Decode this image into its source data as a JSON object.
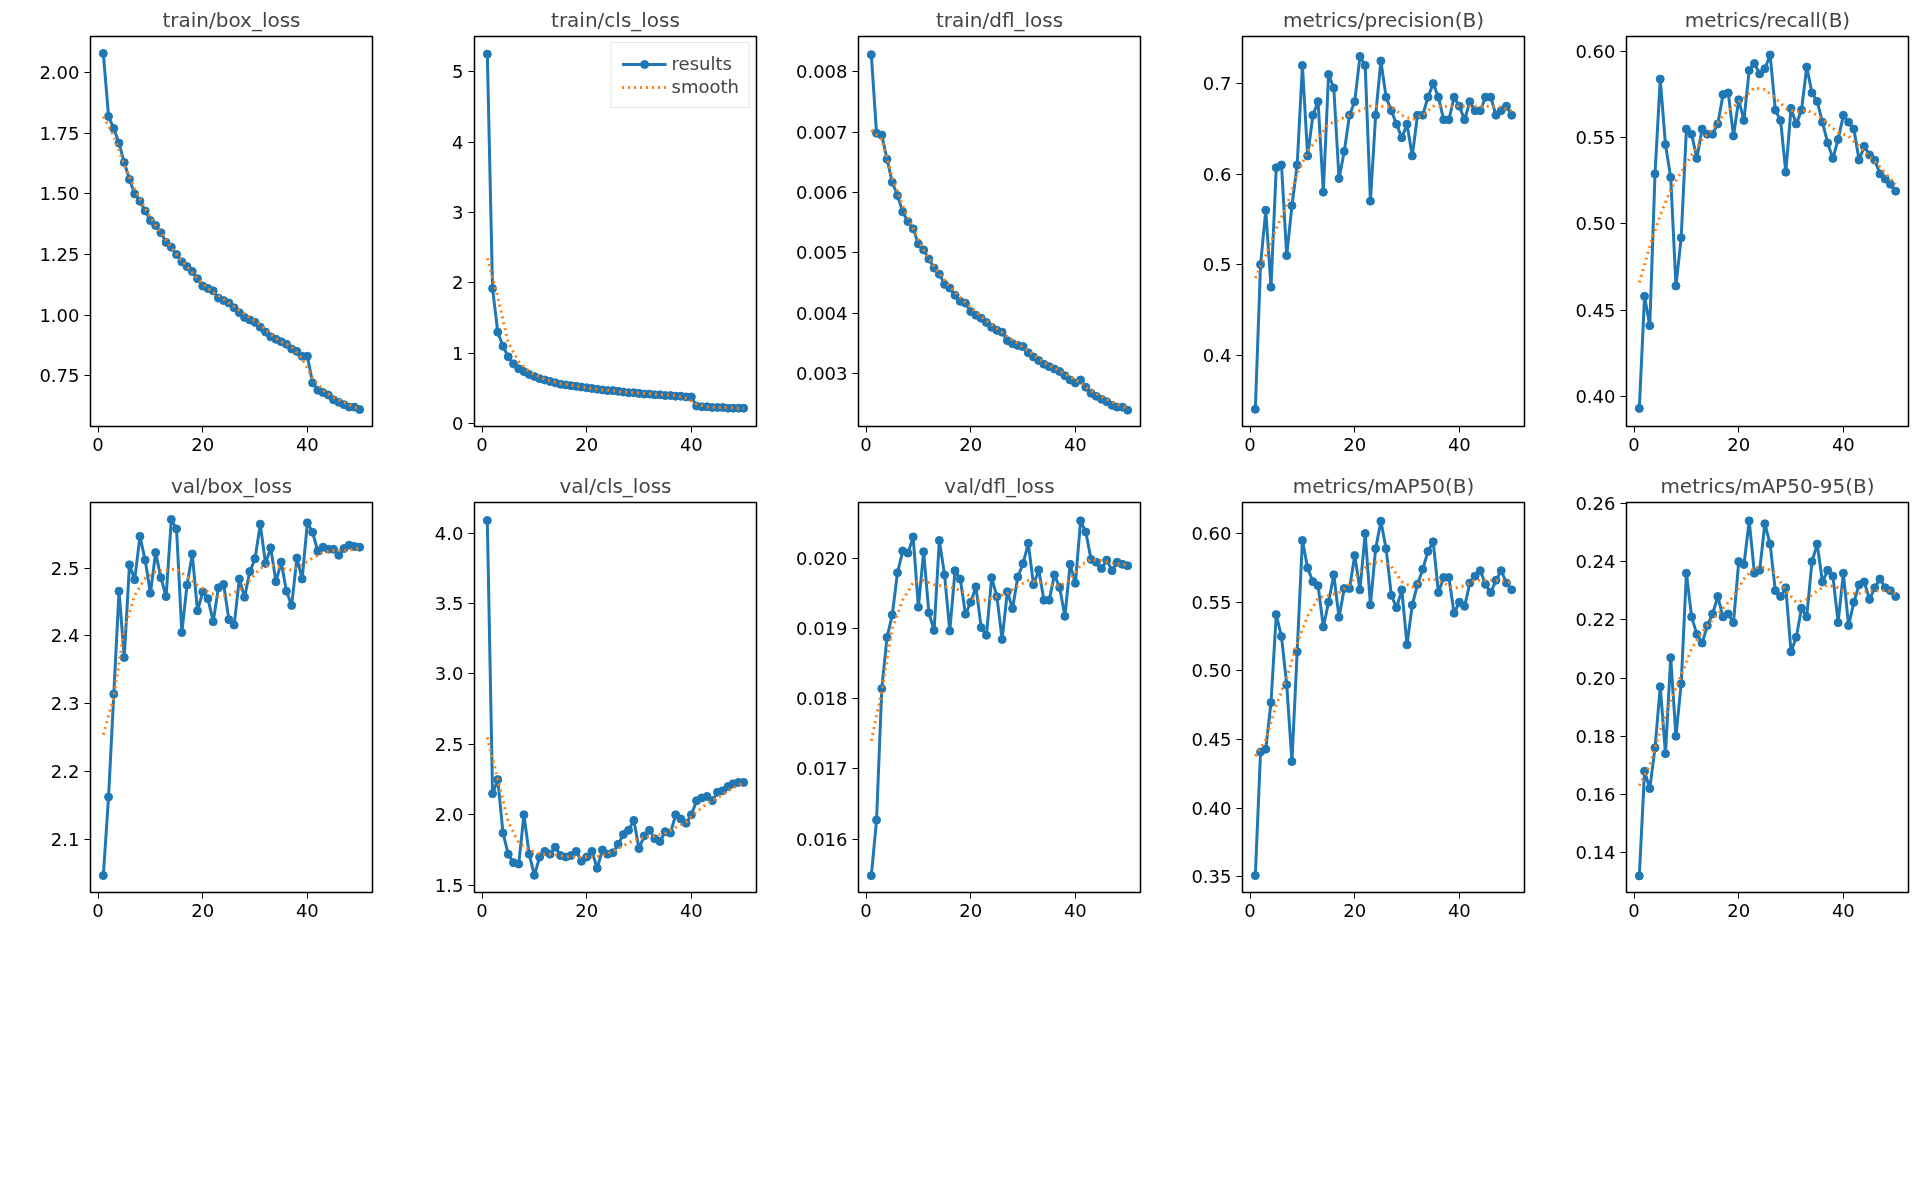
{
  "chart_data": [
    {
      "type": "line",
      "title": "train/box_loss",
      "xlim": [
        -1.45,
        52.45
      ],
      "xticks": [
        0,
        20,
        40
      ],
      "ylim": [
        0.54,
        2.15
      ],
      "yticks": [
        {
          "value": 0.75,
          "label": "0.75"
        },
        {
          "value": 1.0,
          "label": "1.00"
        },
        {
          "value": 1.25,
          "label": "1.25"
        },
        {
          "value": 1.5,
          "label": "1.50"
        },
        {
          "value": 1.75,
          "label": "1.75"
        },
        {
          "value": 2.0,
          "label": "2.00"
        }
      ],
      "x": [
        1,
        2,
        3,
        4,
        5,
        6,
        7,
        8,
        9,
        10,
        11,
        12,
        13,
        14,
        15,
        16,
        17,
        18,
        19,
        20,
        21,
        22,
        23,
        24,
        25,
        26,
        27,
        28,
        29,
        30,
        31,
        32,
        33,
        34,
        35,
        36,
        37,
        38,
        39,
        40,
        41,
        42,
        43,
        44,
        45,
        46,
        47,
        48,
        49,
        50
      ],
      "series": [
        {
          "color": "#1f77b4",
          "marker": "circle",
          "line_style": "solid",
          "values": [
            2.08,
            1.82,
            1.77,
            1.71,
            1.63,
            1.56,
            1.5,
            1.47,
            1.43,
            1.39,
            1.37,
            1.34,
            1.3,
            1.28,
            1.25,
            1.22,
            1.2,
            1.18,
            1.15,
            1.12,
            1.11,
            1.1,
            1.07,
            1.06,
            1.05,
            1.03,
            1.01,
            0.99,
            0.98,
            0.97,
            0.95,
            0.93,
            0.91,
            0.9,
            0.89,
            0.88,
            0.86,
            0.85,
            0.83,
            0.83,
            0.72,
            0.69,
            0.68,
            0.67,
            0.65,
            0.64,
            0.63,
            0.62,
            0.62,
            0.61
          ]
        },
        {
          "color": "#ff7f0e",
          "marker": "none",
          "line_style": "dotted",
          "x": [
            1,
            3,
            5,
            7,
            9,
            11,
            13,
            15,
            17,
            19,
            21,
            23,
            25,
            27,
            29,
            31,
            33,
            35,
            37,
            39,
            41,
            43,
            45,
            47,
            49,
            50
          ],
          "values": [
            1.82,
            1.74,
            1.62,
            1.52,
            1.44,
            1.37,
            1.31,
            1.25,
            1.2,
            1.15,
            1.11,
            1.08,
            1.05,
            1.02,
            0.99,
            0.96,
            0.92,
            0.89,
            0.87,
            0.82,
            0.74,
            0.69,
            0.66,
            0.64,
            0.62,
            0.61
          ]
        }
      ]
    },
    {
      "type": "line",
      "title": "train/cls_loss",
      "legend": "top right",
      "xlim": [
        -1.45,
        52.45
      ],
      "xticks": [
        0,
        20,
        40
      ],
      "ylim": [
        -0.04,
        5.5
      ],
      "yticks": [
        0,
        1,
        2,
        3,
        4,
        5
      ],
      "x": [
        1,
        2,
        3,
        4,
        5,
        6,
        7,
        8,
        9,
        10,
        11,
        12,
        13,
        14,
        15,
        16,
        17,
        18,
        19,
        20,
        21,
        22,
        23,
        24,
        25,
        26,
        27,
        28,
        29,
        30,
        31,
        32,
        33,
        34,
        35,
        36,
        37,
        38,
        39,
        40,
        41,
        42,
        43,
        44,
        45,
        46,
        47,
        48,
        49,
        50
      ],
      "series": [
        {
          "name": "results",
          "color": "#1f77b4",
          "marker": "circle",
          "line_style": "solid",
          "values": [
            5.25,
            1.92,
            1.3,
            1.1,
            0.95,
            0.85,
            0.78,
            0.74,
            0.7,
            0.67,
            0.64,
            0.62,
            0.6,
            0.58,
            0.56,
            0.55,
            0.54,
            0.53,
            0.52,
            0.51,
            0.5,
            0.49,
            0.48,
            0.47,
            0.47,
            0.46,
            0.45,
            0.44,
            0.44,
            0.43,
            0.42,
            0.42,
            0.41,
            0.41,
            0.4,
            0.4,
            0.39,
            0.39,
            0.38,
            0.38,
            0.25,
            0.24,
            0.24,
            0.23,
            0.23,
            0.23,
            0.22,
            0.22,
            0.22,
            0.22
          ]
        },
        {
          "name": "smooth",
          "color": "#ff7f0e",
          "marker": "none",
          "line_style": "dotted",
          "x": [
            1,
            3,
            5,
            7,
            9,
            11,
            13,
            15,
            17,
            19,
            21,
            23,
            25,
            27,
            29,
            31,
            33,
            35,
            37,
            39,
            41,
            43,
            45,
            47,
            49,
            50
          ],
          "values": [
            2.35,
            1.8,
            1.15,
            0.88,
            0.74,
            0.66,
            0.61,
            0.57,
            0.55,
            0.52,
            0.5,
            0.48,
            0.47,
            0.45,
            0.44,
            0.43,
            0.42,
            0.41,
            0.4,
            0.36,
            0.28,
            0.24,
            0.23,
            0.23,
            0.22,
            0.22
          ]
        }
      ]
    },
    {
      "type": "line",
      "title": "train/dfl_loss",
      "xlim": [
        -1.45,
        52.45
      ],
      "xticks": [
        0,
        20,
        40
      ],
      "ylim": [
        0.00213,
        0.00858
      ],
      "yticks": [
        0.003,
        0.004,
        0.005,
        0.006,
        0.007,
        0.008
      ],
      "x": [
        1,
        2,
        3,
        4,
        5,
        6,
        7,
        8,
        9,
        10,
        11,
        12,
        13,
        14,
        15,
        16,
        17,
        18,
        19,
        20,
        21,
        22,
        23,
        24,
        25,
        26,
        27,
        28,
        29,
        30,
        31,
        32,
        33,
        34,
        35,
        36,
        37,
        38,
        39,
        40,
        41,
        42,
        43,
        44,
        45,
        46,
        47,
        48,
        49,
        50
      ],
      "series": [
        {
          "color": "#1f77b4",
          "marker": "circle",
          "line_style": "solid",
          "values": [
            0.00828,
            0.00698,
            0.00695,
            0.00655,
            0.00617,
            0.00595,
            0.00568,
            0.00552,
            0.0054,
            0.00515,
            0.00505,
            0.0049,
            0.00475,
            0.00465,
            0.00448,
            0.00442,
            0.0043,
            0.0042,
            0.00417,
            0.00403,
            0.00397,
            0.00392,
            0.00385,
            0.00377,
            0.00372,
            0.00369,
            0.00355,
            0.0035,
            0.00347,
            0.00345,
            0.00335,
            0.00328,
            0.00322,
            0.00316,
            0.00312,
            0.00308,
            0.00304,
            0.00297,
            0.0029,
            0.00285,
            0.0029,
            0.00278,
            0.00268,
            0.00263,
            0.00258,
            0.00254,
            0.00248,
            0.00245,
            0.00245,
            0.0024
          ]
        },
        {
          "color": "#ff7f0e",
          "marker": "none",
          "line_style": "dotted",
          "x": [
            1,
            3,
            5,
            7,
            9,
            11,
            13,
            15,
            17,
            19,
            21,
            23,
            25,
            27,
            29,
            31,
            33,
            35,
            37,
            39,
            41,
            43,
            45,
            47,
            49,
            50
          ],
          "values": [
            0.00703,
            0.00688,
            0.00625,
            0.00578,
            0.0054,
            0.00505,
            0.00478,
            0.00455,
            0.00435,
            0.00418,
            0.00402,
            0.00388,
            0.00375,
            0.00362,
            0.0035,
            0.00338,
            0.00325,
            0.00314,
            0.00305,
            0.00295,
            0.00285,
            0.00272,
            0.00262,
            0.00254,
            0.00246,
            0.00243
          ]
        }
      ]
    },
    {
      "type": "line",
      "title": "metrics/precision(B)",
      "xlim": [
        -1.45,
        52.45
      ],
      "xticks": [
        0,
        20,
        40
      ],
      "ylim": [
        0.321,
        0.752
      ],
      "yticks": [
        0.4,
        0.5,
        0.6,
        0.7
      ],
      "x": [
        1,
        2,
        3,
        4,
        5,
        6,
        7,
        8,
        9,
        10,
        11,
        12,
        13,
        14,
        15,
        16,
        17,
        18,
        19,
        20,
        21,
        22,
        23,
        24,
        25,
        26,
        27,
        28,
        29,
        30,
        31,
        32,
        33,
        34,
        35,
        36,
        37,
        38,
        39,
        40,
        41,
        42,
        43,
        44,
        45,
        46,
        47,
        48,
        49,
        50
      ],
      "series": [
        {
          "color": "#1f77b4",
          "marker": "circle",
          "line_style": "solid",
          "values": [
            0.34,
            0.5,
            0.56,
            0.475,
            0.607,
            0.61,
            0.51,
            0.565,
            0.61,
            0.72,
            0.62,
            0.665,
            0.68,
            0.58,
            0.71,
            0.695,
            0.595,
            0.625,
            0.665,
            0.68,
            0.73,
            0.72,
            0.57,
            0.665,
            0.725,
            0.685,
            0.67,
            0.655,
            0.64,
            0.655,
            0.62,
            0.665,
            0.665,
            0.685,
            0.7,
            0.685,
            0.66,
            0.66,
            0.685,
            0.675,
            0.66,
            0.68,
            0.67,
            0.67,
            0.685,
            0.685,
            0.665,
            0.67,
            0.675,
            0.665
          ]
        },
        {
          "color": "#ff7f0e",
          "marker": "none",
          "line_style": "dotted",
          "x": [
            1,
            3,
            5,
            7,
            9,
            11,
            13,
            15,
            17,
            19,
            21,
            23,
            25,
            27,
            29,
            31,
            33,
            35,
            37,
            39,
            41,
            43,
            45,
            47,
            49,
            50
          ],
          "values": [
            0.485,
            0.51,
            0.54,
            0.565,
            0.6,
            0.625,
            0.64,
            0.655,
            0.66,
            0.665,
            0.67,
            0.675,
            0.675,
            0.675,
            0.665,
            0.66,
            0.665,
            0.675,
            0.675,
            0.675,
            0.675,
            0.675,
            0.675,
            0.675,
            0.672,
            0.67
          ]
        }
      ]
    },
    {
      "type": "line",
      "title": "metrics/recall(B)",
      "xlim": [
        -1.45,
        52.45
      ],
      "xticks": [
        0,
        20,
        40
      ],
      "ylim": [
        0.3825,
        0.6087
      ],
      "yticks": [
        {
          "value": 0.4,
          "label": "0.40"
        },
        0.45,
        {
          "value": 0.5,
          "label": "0.50"
        },
        0.55,
        {
          "value": 0.6,
          "label": "0.60"
        }
      ],
      "x": [
        1,
        2,
        3,
        4,
        5,
        6,
        7,
        8,
        9,
        10,
        11,
        12,
        13,
        14,
        15,
        16,
        17,
        18,
        19,
        20,
        21,
        22,
        23,
        24,
        25,
        26,
        27,
        28,
        29,
        30,
        31,
        32,
        33,
        34,
        35,
        36,
        37,
        38,
        39,
        40,
        41,
        42,
        43,
        44,
        45,
        46,
        47,
        48,
        49,
        50
      ],
      "series": [
        {
          "color": "#1f77b4",
          "marker": "circle",
          "line_style": "solid",
          "values": [
            0.393,
            0.458,
            0.441,
            0.529,
            0.584,
            0.546,
            0.527,
            0.464,
            0.492,
            0.555,
            0.552,
            0.538,
            0.555,
            0.552,
            0.552,
            0.558,
            0.575,
            0.576,
            0.551,
            0.572,
            0.56,
            0.589,
            0.593,
            0.587,
            0.59,
            0.598,
            0.566,
            0.56,
            0.53,
            0.567,
            0.558,
            0.566,
            0.591,
            0.576,
            0.571,
            0.559,
            0.547,
            0.538,
            0.549,
            0.563,
            0.559,
            0.555,
            0.537,
            0.545,
            0.54,
            0.537,
            0.529,
            0.526,
            0.523,
            0.519
          ]
        },
        {
          "color": "#ff7f0e",
          "marker": "none",
          "line_style": "dotted",
          "x": [
            1,
            3,
            5,
            7,
            9,
            11,
            13,
            15,
            17,
            19,
            21,
            23,
            25,
            27,
            29,
            31,
            33,
            35,
            37,
            39,
            41,
            43,
            45,
            47,
            49,
            50
          ],
          "values": [
            0.466,
            0.487,
            0.505,
            0.52,
            0.53,
            0.54,
            0.549,
            0.555,
            0.563,
            0.568,
            0.573,
            0.579,
            0.578,
            0.573,
            0.567,
            0.565,
            0.566,
            0.563,
            0.558,
            0.553,
            0.551,
            0.545,
            0.539,
            0.533,
            0.526,
            0.523
          ]
        }
      ]
    },
    {
      "type": "line",
      "title": "val/box_loss",
      "xlim": [
        -1.45,
        52.45
      ],
      "xticks": [
        0,
        20,
        40
      ],
      "ylim": [
        2.021,
        2.597
      ],
      "yticks": [
        2.1,
        2.2,
        2.3,
        2.4,
        2.5
      ],
      "x": [
        1,
        2,
        3,
        4,
        5,
        6,
        7,
        8,
        9,
        10,
        11,
        12,
        13,
        14,
        15,
        16,
        17,
        18,
        19,
        20,
        21,
        22,
        23,
        24,
        25,
        26,
        27,
        28,
        29,
        30,
        31,
        32,
        33,
        34,
        35,
        36,
        37,
        38,
        39,
        40,
        41,
        42,
        43,
        44,
        45,
        46,
        47,
        48,
        49,
        50
      ],
      "series": [
        {
          "color": "#1f77b4",
          "marker": "circle",
          "line_style": "solid",
          "values": [
            2.046,
            2.162,
            2.314,
            2.466,
            2.368,
            2.505,
            2.483,
            2.547,
            2.512,
            2.463,
            2.523,
            2.486,
            2.458,
            2.572,
            2.558,
            2.405,
            2.475,
            2.521,
            2.437,
            2.465,
            2.455,
            2.421,
            2.471,
            2.476,
            2.424,
            2.416,
            2.484,
            2.457,
            2.495,
            2.514,
            2.565,
            2.507,
            2.53,
            2.48,
            2.509,
            2.466,
            2.445,
            2.515,
            2.484,
            2.567,
            2.553,
            2.525,
            2.531,
            2.528,
            2.528,
            2.519,
            2.529,
            2.534,
            2.532,
            2.531
          ]
        },
        {
          "color": "#ff7f0e",
          "marker": "none",
          "line_style": "dotted",
          "x": [
            1,
            3,
            5,
            7,
            9,
            11,
            13,
            15,
            17,
            19,
            21,
            23,
            25,
            27,
            29,
            31,
            33,
            35,
            37,
            39,
            41,
            43,
            45,
            47,
            49,
            50
          ],
          "values": [
            2.254,
            2.31,
            2.41,
            2.46,
            2.485,
            2.495,
            2.497,
            2.499,
            2.487,
            2.475,
            2.465,
            2.458,
            2.46,
            2.468,
            2.482,
            2.5,
            2.505,
            2.5,
            2.497,
            2.505,
            2.515,
            2.523,
            2.526,
            2.526,
            2.528,
            2.53
          ]
        }
      ]
    },
    {
      "type": "line",
      "title": "val/cls_loss",
      "xlim": [
        -1.45,
        52.45
      ],
      "xticks": [
        0,
        20,
        40
      ],
      "ylim": [
        1.448,
        4.218
      ],
      "yticks": [
        1.5,
        {
          "value": 2.0,
          "label": "2.0"
        },
        2.5,
        {
          "value": 3.0,
          "label": "3.0"
        },
        3.5,
        {
          "value": 4.0,
          "label": "4.0"
        }
      ],
      "x": [
        1,
        2,
        3,
        4,
        5,
        6,
        7,
        8,
        9,
        10,
        11,
        12,
        13,
        14,
        15,
        16,
        17,
        18,
        19,
        20,
        21,
        22,
        23,
        24,
        25,
        26,
        27,
        28,
        29,
        30,
        31,
        32,
        33,
        34,
        35,
        36,
        37,
        38,
        39,
        40,
        41,
        42,
        43,
        44,
        45,
        46,
        47,
        48,
        49,
        50
      ],
      "series": [
        {
          "color": "#1f77b4",
          "marker": "circle",
          "line_style": "solid",
          "values": [
            4.09,
            2.15,
            2.25,
            1.87,
            1.72,
            1.66,
            1.65,
            2.0,
            1.72,
            1.57,
            1.7,
            1.74,
            1.72,
            1.77,
            1.71,
            1.7,
            1.71,
            1.74,
            1.67,
            1.7,
            1.74,
            1.62,
            1.75,
            1.72,
            1.73,
            1.79,
            1.86,
            1.89,
            1.96,
            1.76,
            1.85,
            1.89,
            1.83,
            1.81,
            1.88,
            1.87,
            2.0,
            1.97,
            1.94,
            2.0,
            2.1,
            2.12,
            2.13,
            2.1,
            2.16,
            2.17,
            2.2,
            2.22,
            2.23,
            2.23
          ]
        },
        {
          "color": "#ff7f0e",
          "marker": "none",
          "line_style": "dotted",
          "x": [
            1,
            3,
            5,
            7,
            9,
            11,
            13,
            15,
            17,
            19,
            21,
            23,
            25,
            27,
            29,
            31,
            33,
            35,
            37,
            39,
            41,
            43,
            45,
            47,
            49,
            50
          ],
          "values": [
            2.55,
            2.25,
            1.95,
            1.8,
            1.75,
            1.72,
            1.72,
            1.71,
            1.7,
            1.7,
            1.7,
            1.71,
            1.74,
            1.78,
            1.82,
            1.84,
            1.85,
            1.87,
            1.91,
            1.95,
            2.02,
            2.08,
            2.12,
            2.17,
            2.21,
            2.23
          ]
        }
      ]
    },
    {
      "type": "line",
      "title": "val/dfl_loss",
      "xlim": [
        -1.45,
        52.45
      ],
      "xticks": [
        0,
        20,
        40
      ],
      "ylim": [
        0.01524,
        0.02079
      ],
      "yticks": [
        0.016,
        0.017,
        0.018,
        0.019,
        {
          "value": 0.02,
          "label": "0.020"
        }
      ],
      "x": [
        1,
        2,
        3,
        4,
        5,
        6,
        7,
        8,
        9,
        10,
        11,
        12,
        13,
        14,
        15,
        16,
        17,
        18,
        19,
        20,
        21,
        22,
        23,
        24,
        25,
        26,
        27,
        28,
        29,
        30,
        31,
        32,
        33,
        34,
        35,
        36,
        37,
        38,
        39,
        40,
        41,
        42,
        43,
        44,
        45,
        46,
        47,
        48,
        49,
        50
      ],
      "series": [
        {
          "color": "#1f77b4",
          "marker": "circle",
          "line_style": "solid",
          "values": [
            0.01548,
            0.01627,
            0.01814,
            0.01887,
            0.01919,
            0.01979,
            0.0201,
            0.02007,
            0.0203,
            0.0193,
            0.02009,
            0.01922,
            0.01897,
            0.02025,
            0.01976,
            0.01896,
            0.01982,
            0.0197,
            0.0192,
            0.01937,
            0.01959,
            0.01901,
            0.0189,
            0.01972,
            0.01945,
            0.01884,
            0.01952,
            0.01928,
            0.01973,
            0.01992,
            0.02021,
            0.01962,
            0.01983,
            0.0194,
            0.0194,
            0.01976,
            0.01958,
            0.01917,
            0.01991,
            0.01964,
            0.02053,
            0.02037,
            0.01998,
            0.01994,
            0.01985,
            0.01997,
            0.01982,
            0.01994,
            0.01991,
            0.01989
          ]
        },
        {
          "color": "#ff7f0e",
          "marker": "none",
          "line_style": "dotted",
          "x": [
            1,
            3,
            5,
            7,
            9,
            11,
            13,
            15,
            17,
            19,
            21,
            23,
            25,
            27,
            29,
            31,
            33,
            35,
            37,
            39,
            41,
            43,
            45,
            47,
            49,
            50
          ],
          "values": [
            0.0174,
            0.0181,
            0.019,
            0.0194,
            0.01965,
            0.01968,
            0.01962,
            0.0196,
            0.01957,
            0.0195,
            0.0194,
            0.0194,
            0.01945,
            0.0195,
            0.0196,
            0.01968,
            0.01966,
            0.01962,
            0.0196,
            0.0197,
            0.0199,
            0.01998,
            0.01996,
            0.01993,
            0.01991,
            0.0199
          ]
        }
      ]
    },
    {
      "type": "line",
      "title": "metrics/mAP50(B)",
      "xlim": [
        -1.45,
        52.45
      ],
      "xticks": [
        0,
        20,
        40
      ],
      "ylim": [
        0.3387,
        0.6226
      ],
      "yticks": [
        0.35,
        {
          "value": 0.4,
          "label": "0.40"
        },
        0.45,
        {
          "value": 0.5,
          "label": "0.50"
        },
        0.55,
        {
          "value": 0.6,
          "label": "0.60"
        }
      ],
      "x": [
        1,
        2,
        3,
        4,
        5,
        6,
        7,
        8,
        9,
        10,
        11,
        12,
        13,
        14,
        15,
        16,
        17,
        18,
        19,
        20,
        21,
        22,
        23,
        24,
        25,
        26,
        27,
        28,
        29,
        30,
        31,
        32,
        33,
        34,
        35,
        36,
        37,
        38,
        39,
        40,
        41,
        42,
        43,
        44,
        45,
        46,
        47,
        48,
        49,
        50
      ],
      "series": [
        {
          "color": "#1f77b4",
          "marker": "circle",
          "line_style": "solid",
          "values": [
            0.351,
            0.441,
            0.443,
            0.477,
            0.541,
            0.525,
            0.49,
            0.434,
            0.514,
            0.595,
            0.575,
            0.565,
            0.562,
            0.532,
            0.55,
            0.57,
            0.539,
            0.56,
            0.56,
            0.584,
            0.559,
            0.6,
            0.548,
            0.589,
            0.609,
            0.589,
            0.555,
            0.546,
            0.559,
            0.519,
            0.548,
            0.563,
            0.574,
            0.587,
            0.594,
            0.557,
            0.568,
            0.568,
            0.542,
            0.55,
            0.547,
            0.564,
            0.569,
            0.573,
            0.563,
            0.557,
            0.566,
            0.573,
            0.564,
            0.559
          ]
        },
        {
          "color": "#ff7f0e",
          "marker": "none",
          "line_style": "dotted",
          "x": [
            1,
            3,
            5,
            7,
            9,
            11,
            13,
            15,
            17,
            19,
            21,
            23,
            25,
            27,
            29,
            31,
            33,
            35,
            37,
            39,
            41,
            43,
            45,
            47,
            49,
            50
          ],
          "values": [
            0.438,
            0.45,
            0.475,
            0.495,
            0.52,
            0.54,
            0.553,
            0.555,
            0.557,
            0.563,
            0.572,
            0.578,
            0.58,
            0.576,
            0.565,
            0.561,
            0.566,
            0.567,
            0.564,
            0.56,
            0.562,
            0.566,
            0.566,
            0.566,
            0.565,
            0.564
          ]
        }
      ]
    },
    {
      "type": "line",
      "title": "metrics/mAP50-95(B)",
      "xlim": [
        -1.45,
        52.45
      ],
      "xticks": [
        0,
        20,
        40
      ],
      "ylim": [
        0.1263,
        0.2603
      ],
      "yticks": [
        0.14,
        0.16,
        0.18,
        {
          "value": 0.2,
          "label": "0.20"
        },
        0.22,
        0.24,
        0.26
      ],
      "x": [
        1,
        2,
        3,
        4,
        5,
        6,
        7,
        8,
        9,
        10,
        11,
        12,
        13,
        14,
        15,
        16,
        17,
        18,
        19,
        20,
        21,
        22,
        23,
        24,
        25,
        26,
        27,
        28,
        29,
        30,
        31,
        32,
        33,
        34,
        35,
        36,
        37,
        38,
        39,
        40,
        41,
        42,
        43,
        44,
        45,
        46,
        47,
        48,
        49,
        50
      ],
      "series": [
        {
          "color": "#1f77b4",
          "marker": "circle",
          "line_style": "solid",
          "values": [
            0.132,
            0.168,
            0.162,
            0.176,
            0.197,
            0.174,
            0.207,
            0.18,
            0.198,
            0.236,
            0.221,
            0.215,
            0.212,
            0.218,
            0.222,
            0.228,
            0.221,
            0.222,
            0.219,
            0.24,
            0.239,
            0.254,
            0.236,
            0.237,
            0.253,
            0.246,
            0.23,
            0.228,
            0.231,
            0.209,
            0.214,
            0.224,
            0.221,
            0.24,
            0.246,
            0.233,
            0.237,
            0.235,
            0.219,
            0.236,
            0.218,
            0.226,
            0.232,
            0.233,
            0.227,
            0.231,
            0.234,
            0.231,
            0.23,
            0.228
          ]
        },
        {
          "color": "#ff7f0e",
          "marker": "none",
          "line_style": "dotted",
          "x": [
            1,
            3,
            5,
            7,
            9,
            11,
            13,
            15,
            17,
            19,
            21,
            23,
            25,
            27,
            29,
            31,
            33,
            35,
            37,
            39,
            41,
            43,
            45,
            47,
            49,
            50
          ],
          "values": [
            0.163,
            0.17,
            0.182,
            0.192,
            0.201,
            0.21,
            0.216,
            0.22,
            0.224,
            0.228,
            0.234,
            0.238,
            0.238,
            0.236,
            0.23,
            0.226,
            0.227,
            0.23,
            0.232,
            0.231,
            0.229,
            0.229,
            0.23,
            0.23,
            0.23,
            0.229
          ]
        }
      ]
    }
  ]
}
